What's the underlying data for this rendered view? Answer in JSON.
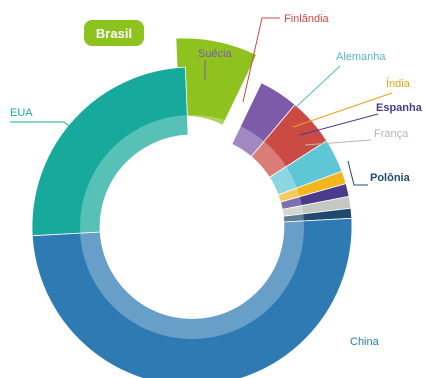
{
  "chart_data": {
    "type": "pie",
    "title": "",
    "total": 100,
    "highlight": "Brasil",
    "slices": [
      {
        "name": "Brasil",
        "value": 7.8,
        "color": "#8dc21f",
        "label_color": "#ffffff"
      },
      {
        "name": "Suécia",
        "value": 4.0,
        "color": "#7e5ba8",
        "label_color": "#7e5ba8"
      },
      {
        "name": "Finlândia",
        "value": 4.8,
        "color": "#cc4a44",
        "label_color": "#cc4a44"
      },
      {
        "name": "Alemanha",
        "value": 3.4,
        "color": "#5fc6d6",
        "label_color": "#5fb4c6"
      },
      {
        "name": "Índia",
        "value": 1.3,
        "color": "#f2b71f",
        "label_color": "#e6a417"
      },
      {
        "name": "Espanha",
        "value": 1.3,
        "color": "#4a3b8c",
        "label_color": "#4a3b8c"
      },
      {
        "name": "França",
        "value": 1.2,
        "color": "#c4c8c2",
        "label_color": "#b5b8b0"
      },
      {
        "name": "Polônia",
        "value": 1.0,
        "color": "#1f4a6e",
        "label_color": "#1f4a6e"
      },
      {
        "name": "China",
        "value": 50.0,
        "color": "#2e7bb4",
        "label_color": "#2e7bb4"
      },
      {
        "name": "EUA",
        "value": 25.2,
        "color": "#17a99c",
        "label_color": "#17a99c"
      }
    ]
  },
  "colors": {
    "inner_ring": "#ffffff",
    "inner_ring_opacity": 0.28,
    "label_line": "#888888"
  }
}
